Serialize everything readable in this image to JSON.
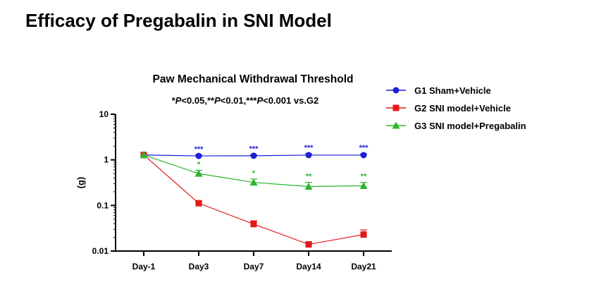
{
  "page": {
    "title": "Efficacy of Pregabalin in SNI Model"
  },
  "chart_data": {
    "type": "line",
    "title": "Paw Mechanical Withdrawal Threshold",
    "subtitle": "*P<0.05,**P<0.01,***P<0.001 vs.G2",
    "xlabel": "",
    "ylabel": "(g)",
    "yscale": "log",
    "ylim": [
      0.01,
      10
    ],
    "yticks": [
      {
        "value": 0.01,
        "label": "0.01"
      },
      {
        "value": 0.1,
        "label": "0.1"
      },
      {
        "value": 1,
        "label": "1"
      },
      {
        "value": 10,
        "label": "10"
      }
    ],
    "categories": [
      "Day-1",
      "Day3",
      "Day7",
      "Day14",
      "Day21"
    ],
    "legend_position": "top-right",
    "series": [
      {
        "name": "G1 Sham+Vehicle",
        "color": "#1f1fd6",
        "marker": "circle",
        "values": [
          1.28,
          1.22,
          1.23,
          1.27,
          1.27
        ],
        "errors": [
          0.06,
          0.05,
          0.05,
          0.1,
          0.08
        ],
        "significance": [
          "",
          "***",
          "***",
          "***",
          "***"
        ]
      },
      {
        "name": "G2 SNI model+Vehicle",
        "color": "#e31a1c",
        "marker": "square",
        "values": [
          1.28,
          0.112,
          0.039,
          0.014,
          0.023
        ],
        "errors": [
          0.06,
          0.012,
          0.007,
          0.0012,
          0.006
        ],
        "significance": [
          "",
          "",
          "",
          "",
          ""
        ]
      },
      {
        "name": "G3 SNI model+Pregabalin",
        "color": "#2db52d",
        "marker": "triangle",
        "values": [
          1.28,
          0.5,
          0.32,
          0.26,
          0.27
        ],
        "errors": [
          0.06,
          0.09,
          0.06,
          0.06,
          0.05
        ],
        "significance": [
          "",
          "*",
          "*",
          "**",
          "**"
        ]
      }
    ]
  }
}
